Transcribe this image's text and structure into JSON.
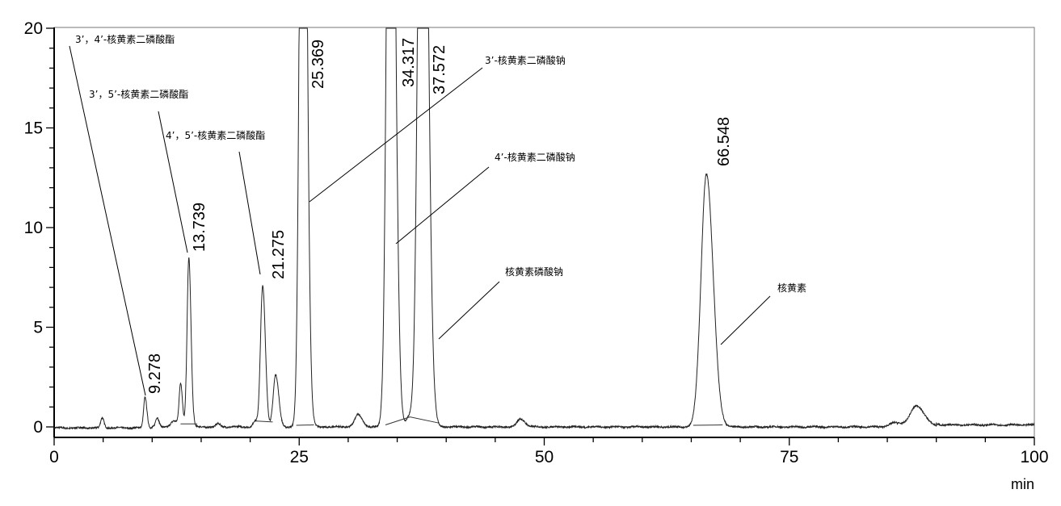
{
  "chart_data": {
    "type": "line",
    "title": "",
    "xlabel": "min",
    "ylabel": "",
    "xlim": [
      0,
      100
    ],
    "ylim": [
      -0.5,
      20
    ],
    "x_ticks": [
      "0",
      "25",
      "50",
      "75",
      "100"
    ],
    "y_ticks": [
      "0",
      "5",
      "10",
      "15",
      "20"
    ],
    "grid": false,
    "line_color": "#000000",
    "peaks": [
      {
        "rt": 4.9,
        "height": 0.5,
        "width": 0.15
      },
      {
        "rt": 9.278,
        "height": 1.55,
        "width": 0.15,
        "label": "9.278"
      },
      {
        "rt": 10.5,
        "height": 0.45,
        "width": 0.15
      },
      {
        "rt": 12.2,
        "height": 0.3,
        "width": 0.3
      },
      {
        "rt": 12.9,
        "height": 2.15,
        "width": 0.15
      },
      {
        "rt": 13.739,
        "height": 8.5,
        "width": 0.18,
        "label": "13.739"
      },
      {
        "rt": 16.7,
        "height": 0.15,
        "width": 0.2
      },
      {
        "rt": 20.5,
        "height": 0.3,
        "width": 0.2
      },
      {
        "rt": 21.275,
        "height": 7.1,
        "width": 0.22,
        "label": "21.275"
      },
      {
        "rt": 22.6,
        "height": 2.6,
        "width": 0.25
      },
      {
        "rt": 25.369,
        "height": 45,
        "width": 0.3,
        "label": "25.369"
      },
      {
        "rt": 31.0,
        "height": 0.6,
        "width": 0.35
      },
      {
        "rt": 34.317,
        "height": 45,
        "width": 0.35,
        "label": "34.317"
      },
      {
        "rt": 36.2,
        "height": 0.5,
        "width": 0.3
      },
      {
        "rt": 37.572,
        "height": 45,
        "width": 0.4,
        "label": "37.572"
      },
      {
        "rt": 47.6,
        "height": 0.4,
        "width": 0.35
      },
      {
        "rt": 66.548,
        "height": 12.7,
        "width": 0.55,
        "label": "66.548"
      },
      {
        "rt": 85.8,
        "height": 0.2,
        "width": 0.6
      },
      {
        "rt": 88.0,
        "height": 1.05,
        "width": 0.65
      }
    ],
    "annotations": [
      {
        "text": "3’，4’-核黄素二磷酸酯",
        "peak_rt": 9.278
      },
      {
        "text": "3’，5’-核黄素二磷酸酯",
        "peak_rt": 13.739
      },
      {
        "text": "4’，5’-核黄素二磷酸酯",
        "peak_rt": 21.275
      },
      {
        "text": "3’-核黄素二磷酸钠",
        "peak_rt": 25.369
      },
      {
        "text": "4’-核黄素二磷酸钠",
        "peak_rt": 34.317
      },
      {
        "text": "核黄素磷酸钠",
        "peak_rt": 37.572
      },
      {
        "text": "核黄素",
        "peak_rt": 66.548
      }
    ]
  }
}
